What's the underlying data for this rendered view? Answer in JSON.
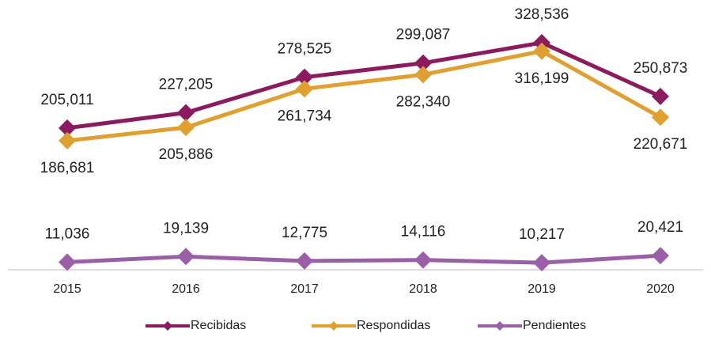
{
  "chart_data": {
    "type": "line",
    "categories": [
      "2015",
      "2016",
      "2017",
      "2018",
      "2019",
      "2020"
    ],
    "ylim": [
      0,
      380000
    ],
    "series": [
      {
        "name": "Recibidas",
        "color": "#8b1a5e",
        "values": [
          205011,
          227205,
          278525,
          299087,
          328536,
          250873
        ],
        "value_labels": [
          "205,011",
          "227,205",
          "278,525",
          "299,087",
          "328,536",
          "250,873"
        ]
      },
      {
        "name": "Respondidas",
        "color": "#e0a030",
        "values": [
          186681,
          205886,
          261734,
          282340,
          316199,
          220671
        ],
        "value_labels": [
          "186,681",
          "205,886",
          "261,734",
          "282,340",
          "316,199",
          "220,671"
        ]
      },
      {
        "name": "Pendientes",
        "color": "#9b5fa8",
        "values": [
          11036,
          19139,
          12775,
          14116,
          10217,
          20421
        ],
        "value_labels": [
          "11,036",
          "19,139",
          "12,775",
          "14,116",
          "10,217",
          "20,421"
        ]
      }
    ]
  }
}
